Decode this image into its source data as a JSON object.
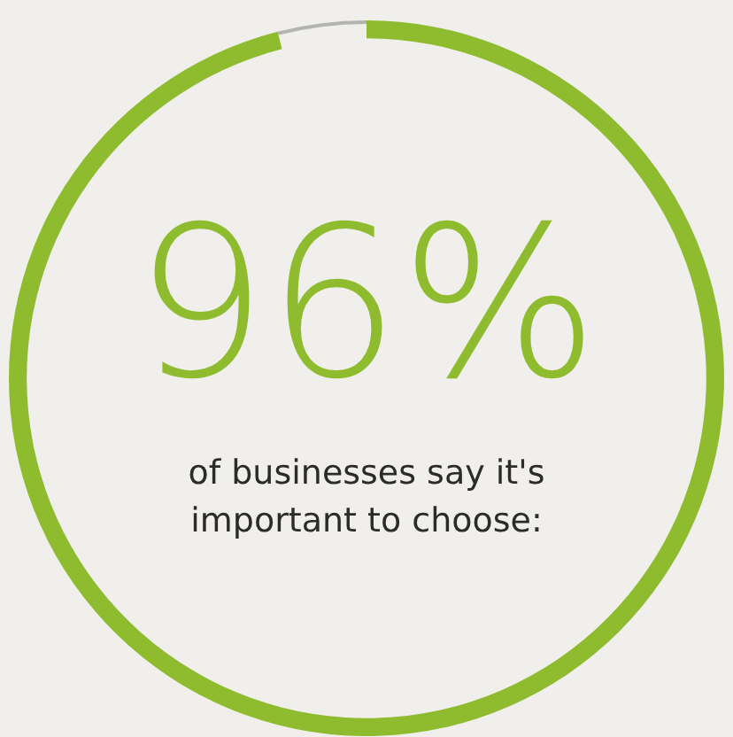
{
  "chart_data": {
    "type": "donut",
    "categories": [
      null,
      null
    ],
    "values": [
      96,
      4
    ],
    "colors": [
      "#8fbc2f",
      "#b3b3b3"
    ],
    "value_labels": [
      "96%",
      null
    ],
    "annotations": [
      "of businesses say it's important to choose:"
    ],
    "legend": false
  }
}
